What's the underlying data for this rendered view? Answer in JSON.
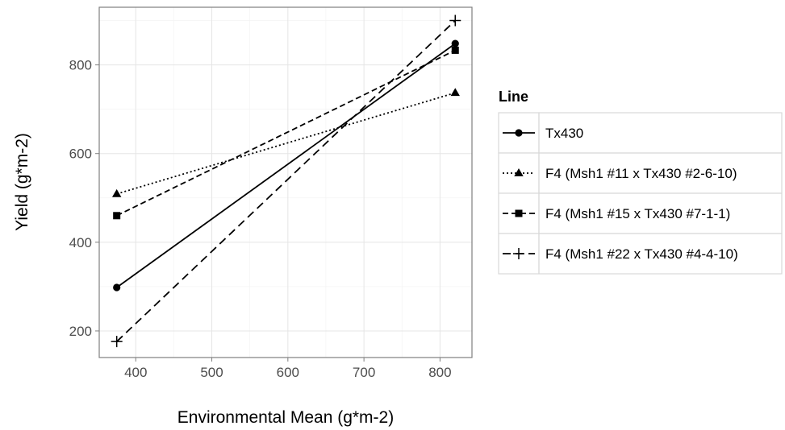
{
  "chart_data": {
    "type": "line",
    "title": "",
    "xlabel": "Environmental Mean (g*m-2)",
    "ylabel": "Yield (g*m-2)",
    "xlim": [
      352,
      842
    ],
    "ylim": [
      140,
      930
    ],
    "x_ticks": [
      400,
      500,
      600,
      700,
      800
    ],
    "y_ticks": [
      200,
      400,
      600,
      800
    ],
    "x_tick_labels": [
      "400",
      "500",
      "600",
      "700",
      "800"
    ],
    "y_tick_labels": [
      "200",
      "400",
      "600",
      "800"
    ],
    "grid": true,
    "legend_position": "right",
    "legend_title": "Line",
    "series": [
      {
        "name": "Tx430",
        "dash": "solid",
        "marker": "circle",
        "points": [
          [
            375,
            298
          ],
          [
            820,
            848
          ]
        ]
      },
      {
        "name": "F4 (Msh1 #11 x Tx430 #2-6-10)",
        "dash": "dotted",
        "marker": "triangle",
        "points": [
          [
            375,
            509
          ],
          [
            820,
            737
          ]
        ]
      },
      {
        "name": "F4 (Msh1 #15 x Tx430 #7-1-1)",
        "dash": "dashed",
        "marker": "square",
        "points": [
          [
            375,
            460
          ],
          [
            820,
            833
          ]
        ]
      },
      {
        "name": "F4 (Msh1 #22 x Tx430 #4-4-10)",
        "dash": "longdash",
        "marker": "plus",
        "points": [
          [
            375,
            176
          ],
          [
            820,
            900
          ]
        ]
      }
    ]
  }
}
